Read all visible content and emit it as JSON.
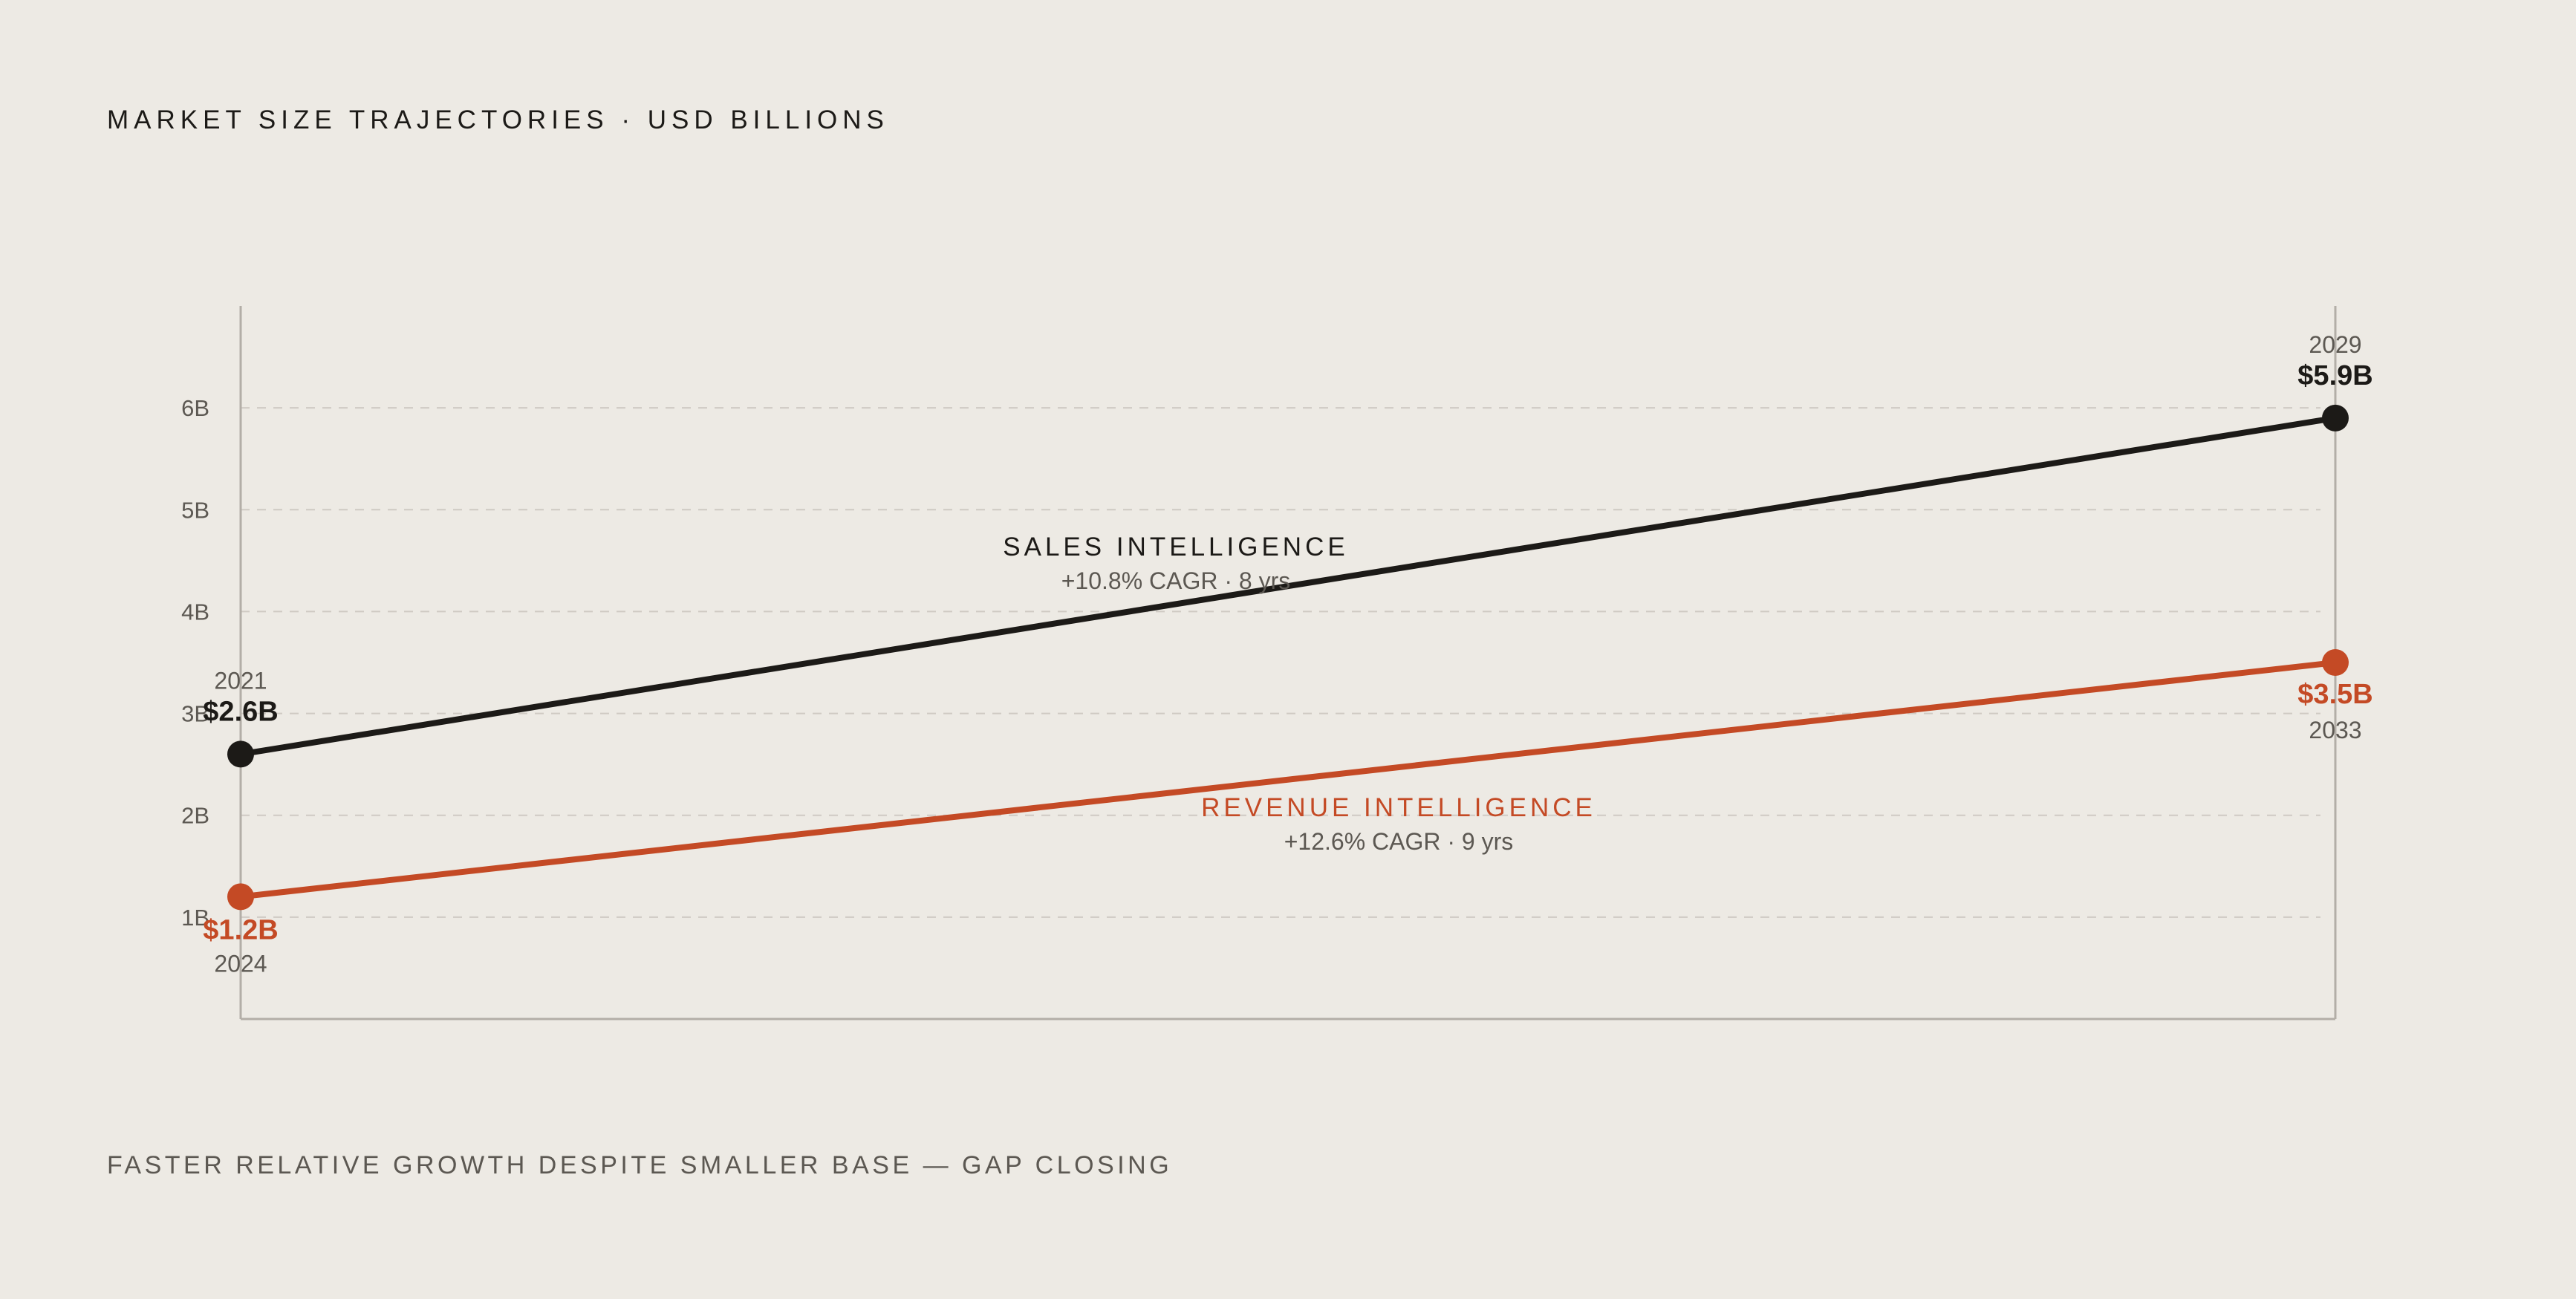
{
  "page": {
    "title": "MARKET SIZE TRAJECTORIES · USD BILLIONS",
    "caption": "FASTER RELATIVE GROWTH DESPITE SMALLER BASE — GAP CLOSING"
  },
  "colors": {
    "background": "#edeae4",
    "sales": "#1c1a17",
    "revenue": "#c44a25",
    "axis": "#b3aea7",
    "grid": "#cfcac3",
    "muted_text": "#5c5852"
  },
  "chart_data": {
    "type": "line",
    "ylim": [
      0,
      7
    ],
    "yticks": [
      1,
      2,
      3,
      4,
      5,
      6
    ],
    "ytick_labels": [
      "1B",
      "2B",
      "3B",
      "4B",
      "5B",
      "6B"
    ],
    "grid": true,
    "series": [
      {
        "name": "SALES INTELLIGENCE",
        "subtitle": "+10.8% CAGR · 8 yrs",
        "color": "#1c1a17",
        "start": {
          "year": "2021",
          "value": 2.6,
          "label": "$2.6B"
        },
        "end": {
          "year": "2029",
          "value": 5.9,
          "label": "$5.9B"
        }
      },
      {
        "name": "REVENUE INTELLIGENCE",
        "subtitle": "+12.6% CAGR · 9 yrs",
        "color": "#c44a25",
        "start": {
          "year": "2024",
          "value": 1.2,
          "label": "$1.2B"
        },
        "end": {
          "year": "2033",
          "value": 3.5,
          "label": "$3.5B"
        }
      }
    ]
  }
}
